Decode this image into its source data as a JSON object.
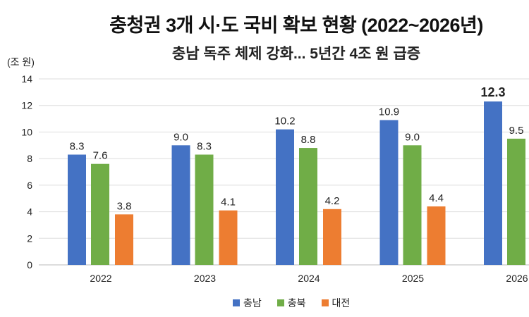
{
  "chart_data": {
    "type": "bar",
    "title": "충청권 3개 시·도 국비 확보 현황 (2022~2026년)",
    "subtitle": "충남 독주 체제 강화... 5년간 4조 원 급증",
    "ylabel": "(조 원)",
    "xlabel": "",
    "ylim": [
      0,
      14
    ],
    "yticks": [
      0,
      2,
      4,
      6,
      8,
      10,
      12,
      14
    ],
    "grid": true,
    "legend_placement": "bottom",
    "categories": [
      "2022",
      "2023",
      "2024",
      "2025",
      "2026"
    ],
    "series": [
      {
        "name": "충남",
        "color": "#4472C4",
        "values": [
          8.3,
          9.0,
          10.2,
          10.9,
          12.3
        ]
      },
      {
        "name": "충북",
        "color": "#70AD47",
        "values": [
          7.6,
          8.3,
          8.8,
          9.0,
          9.5
        ]
      },
      {
        "name": "대전",
        "color": "#ED7D31",
        "values": [
          3.8,
          4.1,
          4.2,
          4.4,
          null
        ]
      }
    ],
    "highlight_label": "12.3"
  }
}
